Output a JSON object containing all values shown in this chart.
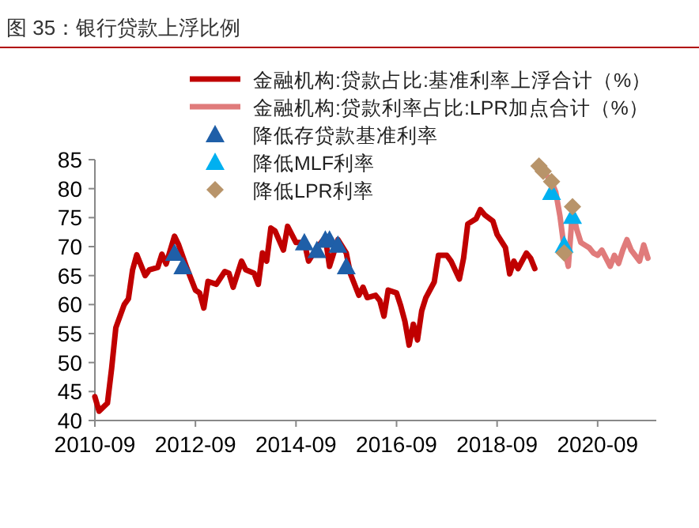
{
  "chart_data": {
    "type": "line",
    "title": "图 35：银行贷款上浮比例",
    "xlim": [
      "2010-09",
      "2021-11"
    ],
    "xticks": [
      "2010-09",
      "2012-09",
      "2014-09",
      "2016-09",
      "2018-09",
      "2020-09"
    ],
    "ylim": [
      40,
      85
    ],
    "yticks": [
      40,
      45,
      50,
      55,
      60,
      65,
      70,
      75,
      80,
      85
    ],
    "grid": false,
    "legend": "top",
    "series": [
      {
        "name": "金融机构:贷款占比:基准利率上浮合计（%）",
        "color": "#c00000",
        "marker": "none",
        "x": [
          "2010-09",
          "2010-10",
          "2010-12",
          "2011-01",
          "2011-02",
          "2011-04",
          "2011-05",
          "2011-06",
          "2011-07",
          "2011-09",
          "2011-10",
          "2011-12",
          "2012-01",
          "2012-02",
          "2012-04",
          "2012-05",
          "2012-07",
          "2012-09",
          "2012-10",
          "2012-11",
          "2012-12",
          "2013-02",
          "2013-04",
          "2013-05",
          "2013-06",
          "2013-08",
          "2013-09",
          "2013-11",
          "2013-12",
          "2014-01",
          "2014-02",
          "2014-03",
          "2014-04",
          "2014-06",
          "2014-07",
          "2014-09",
          "2014-11",
          "2014-12",
          "2015-02",
          "2015-04",
          "2015-05",
          "2015-07",
          "2015-09",
          "2015-10",
          "2015-12",
          "2016-01",
          "2016-02",
          "2016-04",
          "2016-05",
          "2016-06",
          "2016-07",
          "2016-09",
          "2016-10",
          "2016-11",
          "2016-12",
          "2017-01",
          "2017-02",
          "2017-03",
          "2017-04",
          "2017-06",
          "2017-07",
          "2017-09",
          "2017-10",
          "2017-12",
          "2018-01",
          "2018-02",
          "2018-04",
          "2018-05",
          "2018-06",
          "2018-08",
          "2018-09",
          "2018-11",
          "2018-12",
          "2019-01",
          "2019-02",
          "2019-04",
          "2019-05",
          "2019-06"
        ],
        "values": [
          44.1,
          41.6,
          43,
          49,
          56,
          60,
          61,
          66,
          68.6,
          65,
          66,
          66.4,
          68.7,
          67,
          71.8,
          70.3,
          66.2,
          62.5,
          62,
          59.4,
          64,
          63.5,
          65.7,
          65.4,
          63,
          67.5,
          66,
          65.4,
          63.5,
          68.9,
          67.5,
          73.2,
          72.7,
          69.4,
          73.5,
          70.7,
          70.7,
          67.5,
          69.8,
          71.6,
          66.6,
          71.2,
          68.9,
          65.3,
          61.6,
          63,
          61.2,
          61.6,
          60.7,
          58,
          62.5,
          62,
          59.8,
          57.1,
          53,
          56.6,
          53.9,
          58.9,
          61.2,
          63.9,
          68.5,
          68.5,
          67.5,
          64.4,
          68,
          73.9,
          74.8,
          76.4,
          75.5,
          74.4,
          72.1,
          69.8,
          65.3,
          67.5,
          66.2,
          68.9,
          68,
          66.2
        ]
      },
      {
        "name": "金融机构:贷款利率占比:LPR加点合计（%）",
        "color": "#e07b7b",
        "marker": "none",
        "x": [
          "2019-07",
          "2019-08",
          "2019-10",
          "2019-11",
          "2019-12",
          "2020-01",
          "2020-02",
          "2020-03",
          "2020-04",
          "2020-05",
          "2020-07",
          "2020-08",
          "2020-09",
          "2020-10",
          "2020-12",
          "2021-01",
          "2021-02",
          "2021-03",
          "2021-04",
          "2021-05",
          "2021-07",
          "2021-08",
          "2021-09"
        ],
        "values": [
          83.9,
          83,
          81.2,
          79.4,
          75.3,
          69.8,
          66.6,
          76.2,
          73,
          70.7,
          69.8,
          68.9,
          68.5,
          69.4,
          66.6,
          68.5,
          67.1,
          69.4,
          71.2,
          69.4,
          67.5,
          70.3,
          68
        ]
      },
      {
        "name": "降低存贷款基准利率",
        "type": "scatter",
        "color": "#1f5fa8",
        "marker": "triangle",
        "x": [
          "2012-04",
          "2012-06",
          "2014-11",
          "2015-02",
          "2015-04",
          "2015-05",
          "2015-07",
          "2015-09"
        ],
        "values": [
          68.9,
          66.6,
          70.7,
          69.4,
          71.2,
          71.2,
          70.3,
          66.6
        ]
      },
      {
        "name": "降低MLF利率",
        "type": "scatter",
        "color": "#00b0f0",
        "marker": "triangle",
        "x": [
          "2019-10",
          "2020-01",
          "2020-03"
        ],
        "values": [
          79.4,
          70.3,
          75.3
        ]
      },
      {
        "name": "降低LPR利率",
        "type": "scatter",
        "color": "#b8946a",
        "marker": "diamond",
        "x": [
          "2019-07",
          "2019-08",
          "2019-10",
          "2020-01",
          "2020-03"
        ],
        "values": [
          83.9,
          83,
          81.2,
          68.9,
          76.9
        ]
      }
    ]
  }
}
